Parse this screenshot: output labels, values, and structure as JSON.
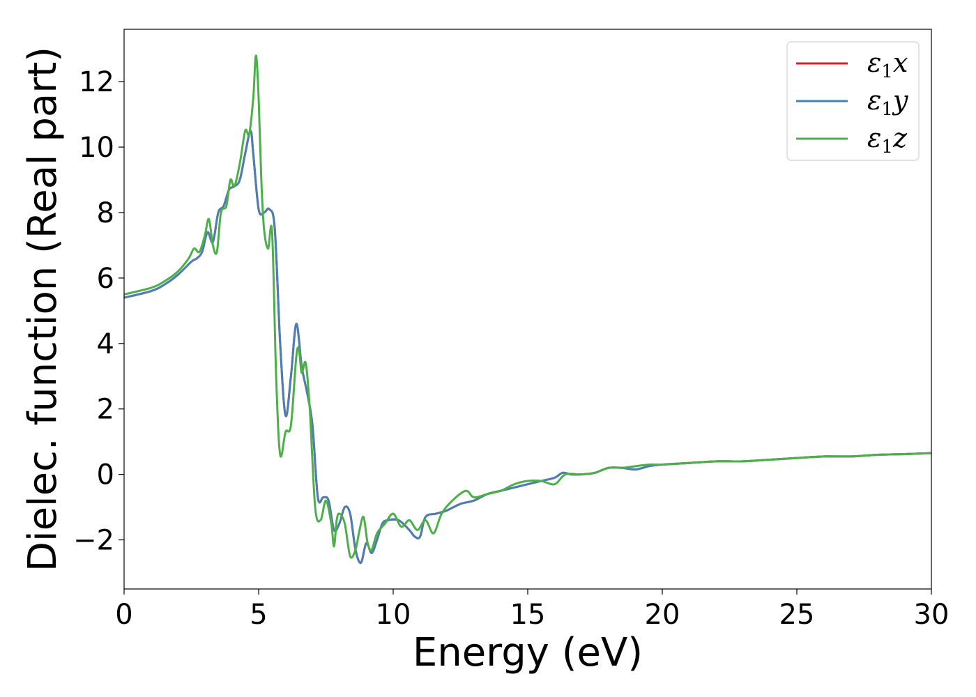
{
  "chart_data": {
    "type": "line",
    "title": "",
    "xlabel": "Energy (eV)",
    "ylabel": "Dielec. function (Real part)",
    "xlim": [
      0,
      30
    ],
    "ylim": [
      -3.5,
      13.6
    ],
    "xticks": [
      0,
      5,
      10,
      15,
      20,
      25,
      30
    ],
    "xtick_labels": [
      "0",
      "5",
      "10",
      "15",
      "20",
      "25",
      "30"
    ],
    "yticks": [
      -2,
      0,
      2,
      4,
      6,
      8,
      10,
      12
    ],
    "ytick_labels": [
      "−2",
      "0",
      "2",
      "4",
      "6",
      "8",
      "10",
      "12"
    ],
    "grid": false,
    "legend_position": "top-right",
    "series": [
      {
        "name": "ε₁x",
        "legend_base": "ε",
        "legend_sub": "1",
        "legend_var": "x",
        "color": "#e41a1c",
        "x": [
          0,
          1,
          1.5,
          2,
          2.5,
          2.7,
          2.9,
          3.1,
          3.3,
          3.5,
          3.7,
          3.9,
          4.1,
          4.3,
          4.5,
          4.7,
          4.8,
          5.0,
          5.2,
          5.4,
          5.6,
          5.8,
          6.0,
          6.2,
          6.4,
          6.6,
          6.8,
          7.0,
          7.2,
          7.4,
          7.6,
          7.8,
          8.0,
          8.2,
          8.4,
          8.6,
          8.8,
          9.0,
          9.2,
          9.4,
          9.6,
          9.8,
          10.2,
          10.6,
          10.8,
          11.0,
          11.2,
          11.6,
          12.0,
          12.5,
          13.0,
          13.5,
          14.0,
          14.5,
          15.0,
          15.5,
          16.0,
          16.3,
          16.6,
          17.0,
          17.5,
          18.0,
          18.5,
          19.0,
          19.5,
          20.0,
          21.0,
          22.0,
          23.0,
          24.0,
          25.0,
          26.0,
          27.0,
          28.0,
          29.0,
          30.0
        ],
        "y": [
          5.4,
          5.6,
          5.8,
          6.1,
          6.5,
          6.6,
          6.8,
          7.4,
          7.1,
          8.0,
          8.2,
          8.7,
          8.8,
          9.0,
          9.8,
          10.5,
          9.8,
          8.1,
          8.0,
          8.1,
          7.5,
          4.0,
          1.8,
          3.0,
          4.6,
          3.3,
          2.5,
          1.5,
          -0.7,
          -0.7,
          -0.8,
          -1.7,
          -1.5,
          -1.0,
          -1.2,
          -2.3,
          -2.7,
          -2.1,
          -2.4,
          -2.0,
          -1.5,
          -1.4,
          -1.4,
          -1.7,
          -1.9,
          -1.9,
          -1.3,
          -1.2,
          -1.1,
          -0.9,
          -0.8,
          -0.6,
          -0.5,
          -0.4,
          -0.3,
          -0.2,
          -0.1,
          0.05,
          0.0,
          0.0,
          0.05,
          0.2,
          0.2,
          0.15,
          0.25,
          0.3,
          0.35,
          0.4,
          0.4,
          0.45,
          0.5,
          0.55,
          0.55,
          0.6,
          0.62,
          0.65
        ]
      },
      {
        "name": "ε₁y",
        "legend_base": "ε",
        "legend_sub": "1",
        "legend_var": "y",
        "color": "#4a7fb5",
        "x": [
          0,
          1,
          1.5,
          2,
          2.5,
          2.7,
          2.9,
          3.1,
          3.3,
          3.5,
          3.7,
          3.9,
          4.1,
          4.3,
          4.5,
          4.7,
          4.8,
          5.0,
          5.2,
          5.4,
          5.6,
          5.8,
          6.0,
          6.2,
          6.4,
          6.6,
          6.8,
          7.0,
          7.2,
          7.4,
          7.6,
          7.8,
          8.0,
          8.2,
          8.4,
          8.6,
          8.8,
          9.0,
          9.2,
          9.4,
          9.6,
          9.8,
          10.2,
          10.6,
          10.8,
          11.0,
          11.2,
          11.6,
          12.0,
          12.5,
          13.0,
          13.5,
          14.0,
          14.5,
          15.0,
          15.5,
          16.0,
          16.3,
          16.6,
          17.0,
          17.5,
          18.0,
          18.5,
          19.0,
          19.5,
          20.0,
          21.0,
          22.0,
          23.0,
          24.0,
          25.0,
          26.0,
          27.0,
          28.0,
          29.0,
          30.0
        ],
        "y": [
          5.4,
          5.6,
          5.8,
          6.1,
          6.5,
          6.6,
          6.8,
          7.4,
          7.1,
          8.0,
          8.2,
          8.7,
          8.8,
          9.0,
          9.8,
          10.5,
          9.8,
          8.1,
          8.0,
          8.1,
          7.5,
          4.0,
          1.8,
          3.0,
          4.6,
          3.3,
          2.5,
          1.5,
          -0.7,
          -0.7,
          -0.8,
          -1.7,
          -1.5,
          -1.0,
          -1.2,
          -2.3,
          -2.7,
          -2.1,
          -2.4,
          -2.0,
          -1.5,
          -1.4,
          -1.4,
          -1.7,
          -1.9,
          -1.9,
          -1.3,
          -1.2,
          -1.1,
          -0.9,
          -0.8,
          -0.6,
          -0.5,
          -0.4,
          -0.3,
          -0.2,
          -0.1,
          0.05,
          0.0,
          0.0,
          0.05,
          0.2,
          0.2,
          0.15,
          0.25,
          0.3,
          0.35,
          0.4,
          0.4,
          0.45,
          0.5,
          0.55,
          0.55,
          0.6,
          0.62,
          0.65
        ]
      },
      {
        "name": "ε₁z",
        "legend_base": "ε",
        "legend_sub": "1",
        "legend_var": "z",
        "color": "#4daf4a",
        "x": [
          0,
          1,
          1.5,
          2,
          2.4,
          2.6,
          2.8,
          3.0,
          3.15,
          3.3,
          3.45,
          3.6,
          3.8,
          3.95,
          4.1,
          4.3,
          4.5,
          4.65,
          4.8,
          4.9,
          5.0,
          5.1,
          5.2,
          5.35,
          5.5,
          5.65,
          5.8,
          6.0,
          6.2,
          6.4,
          6.5,
          6.6,
          6.75,
          6.9,
          7.1,
          7.3,
          7.5,
          7.7,
          7.8,
          7.9,
          8.0,
          8.2,
          8.4,
          8.6,
          8.75,
          8.9,
          9.05,
          9.2,
          9.4,
          9.7,
          10.0,
          10.3,
          10.6,
          10.9,
          11.2,
          11.5,
          11.8,
          12.2,
          12.7,
          13.0,
          13.5,
          14.0,
          14.5,
          15.0,
          15.5,
          16.0,
          16.4,
          17.0,
          17.5,
          18.0,
          18.5,
          19.0,
          19.5,
          20.0,
          21.0,
          22.0,
          23.0,
          24.0,
          25.0,
          26.0,
          27.0,
          28.0,
          29.0,
          30.0
        ],
        "y": [
          5.5,
          5.7,
          5.9,
          6.2,
          6.6,
          6.9,
          6.8,
          7.3,
          7.8,
          7.0,
          6.8,
          8.0,
          8.2,
          9.0,
          8.8,
          9.5,
          10.5,
          10.4,
          11.5,
          12.8,
          11.5,
          9.0,
          7.5,
          6.9,
          7.4,
          3.0,
          0.6,
          1.3,
          1.5,
          3.6,
          3.8,
          3.1,
          3.4,
          2.0,
          -1.0,
          -1.4,
          -0.8,
          -1.5,
          -2.2,
          -1.4,
          -1.2,
          -1.5,
          -2.5,
          -2.3,
          -1.7,
          -1.3,
          -2.1,
          -2.3,
          -1.8,
          -1.5,
          -1.2,
          -1.6,
          -1.4,
          -1.7,
          -1.4,
          -1.8,
          -1.2,
          -0.8,
          -0.5,
          -0.7,
          -0.6,
          -0.5,
          -0.3,
          -0.2,
          -0.2,
          -0.3,
          0.0,
          0.0,
          0.05,
          0.2,
          0.2,
          0.25,
          0.3,
          0.3,
          0.35,
          0.4,
          0.4,
          0.45,
          0.5,
          0.55,
          0.55,
          0.6,
          0.62,
          0.65
        ]
      }
    ]
  }
}
